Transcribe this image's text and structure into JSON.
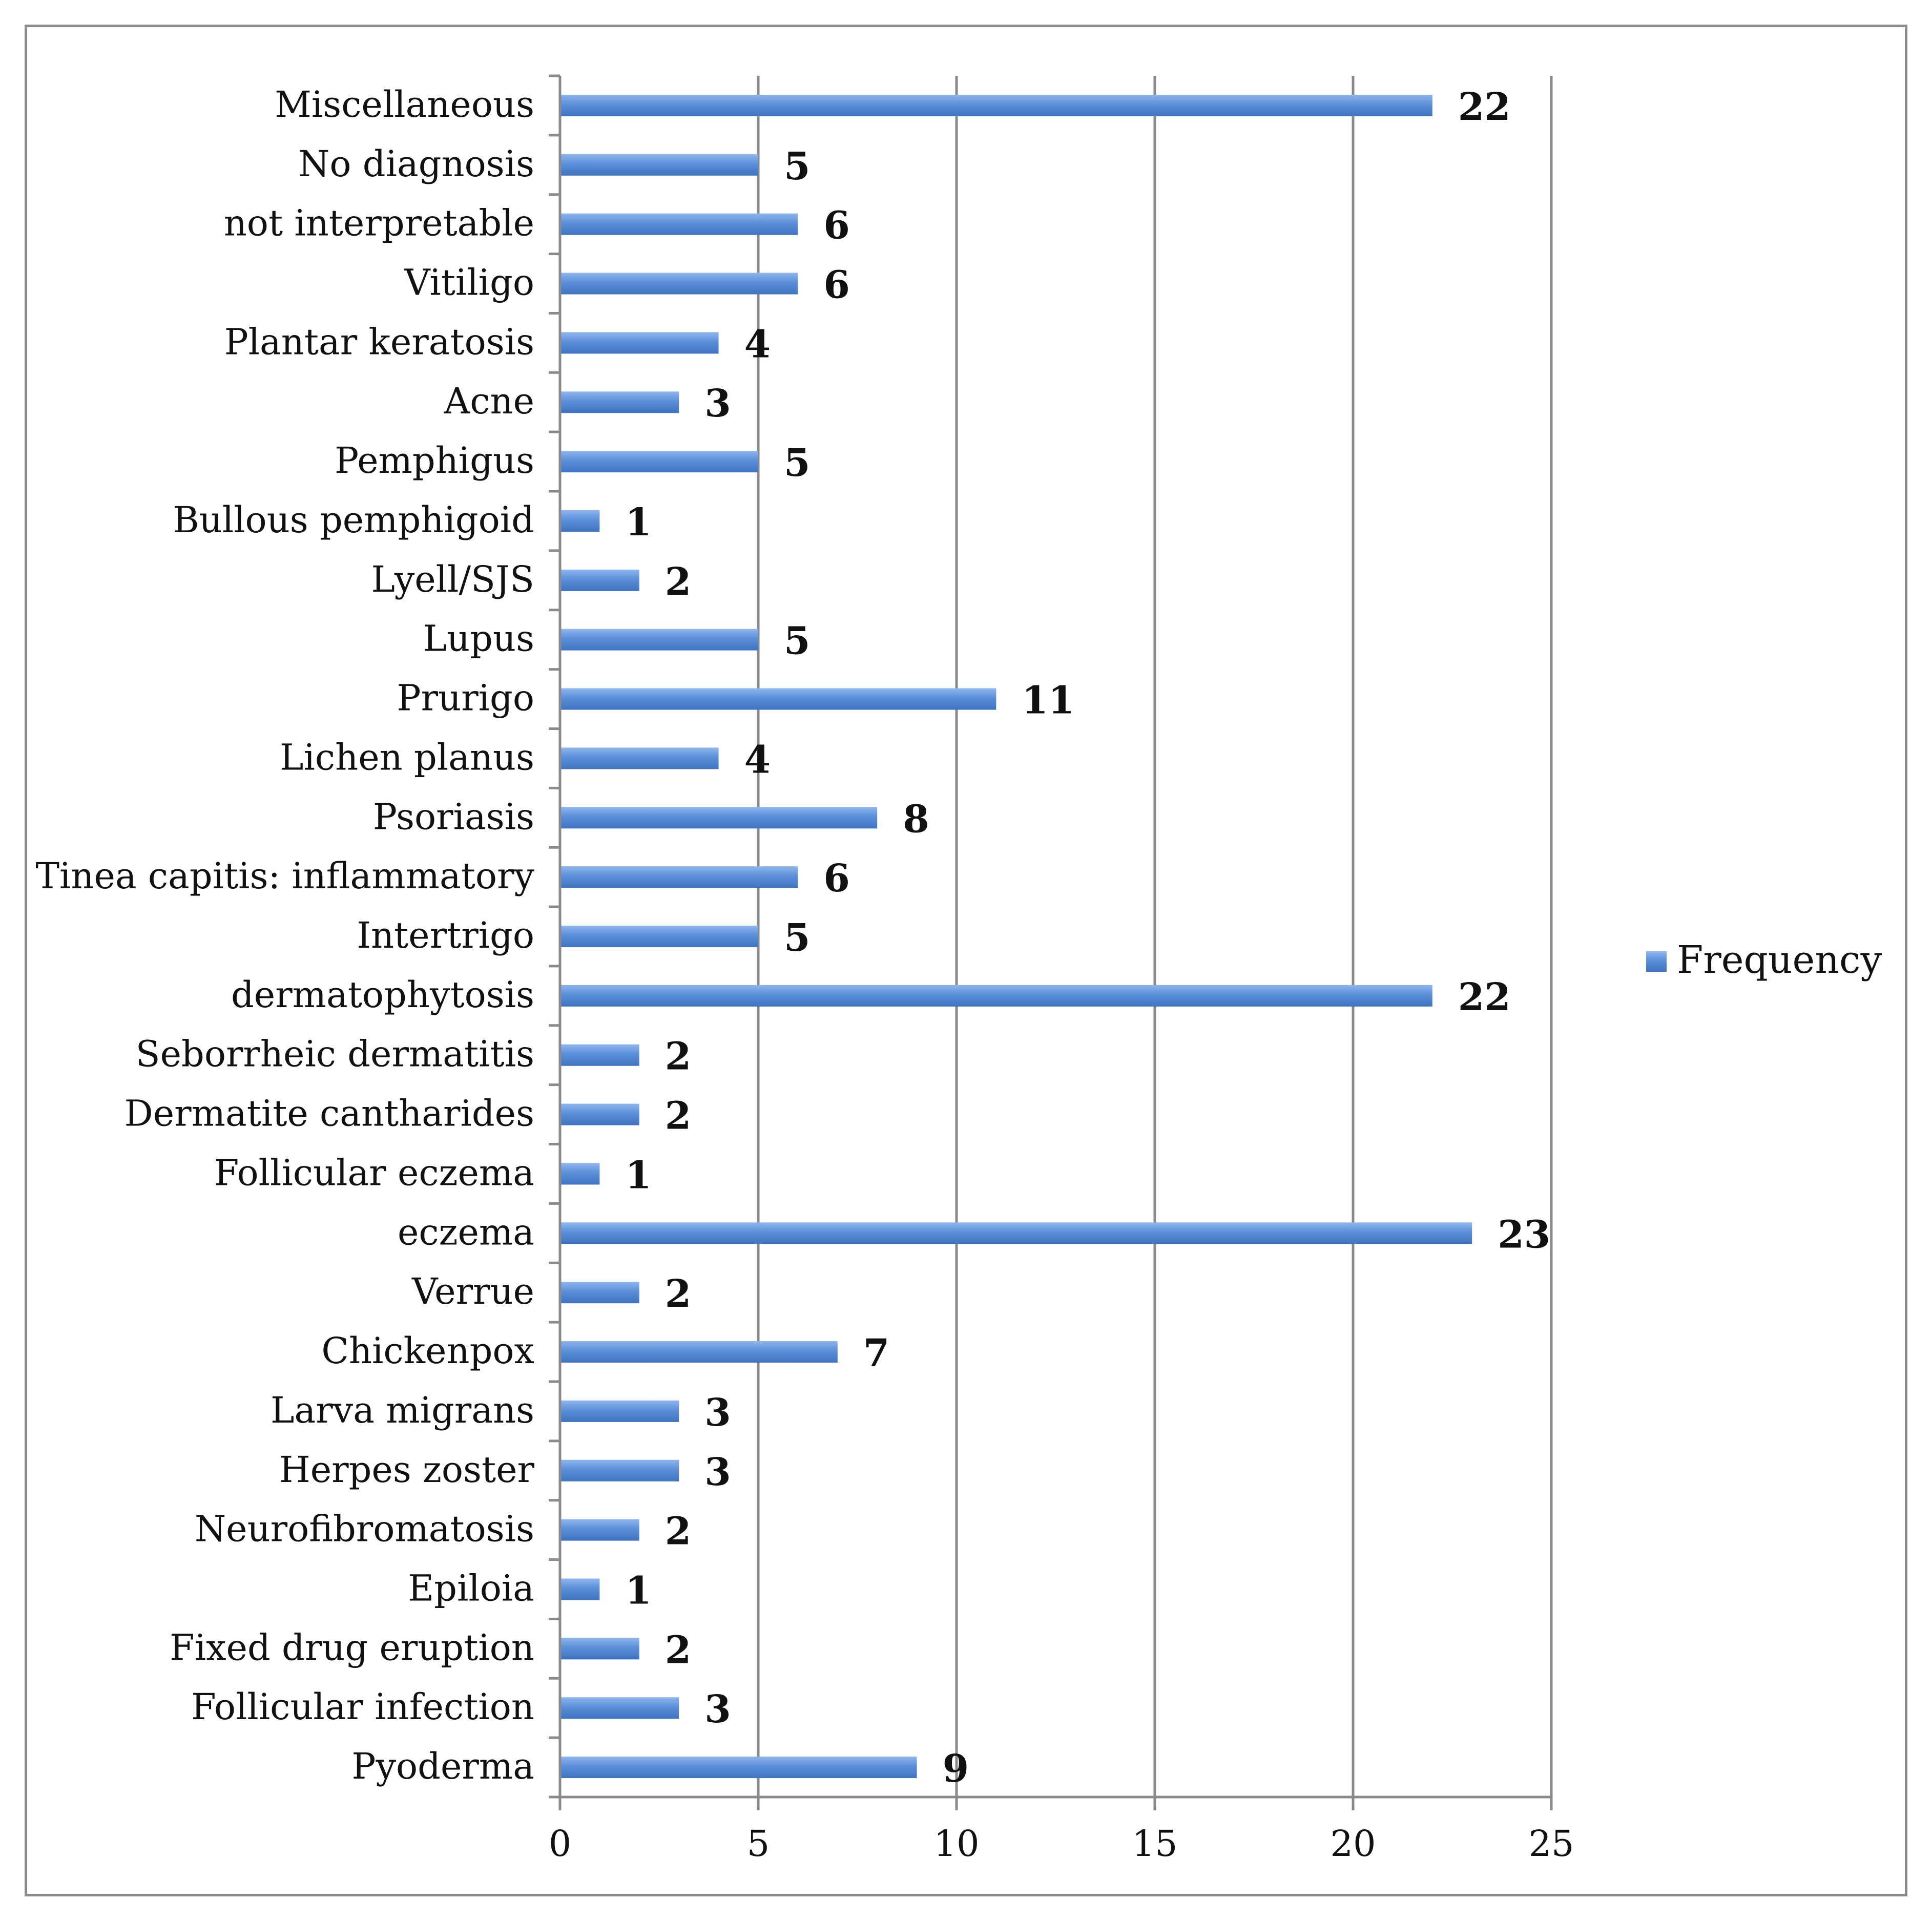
{
  "chart_data": {
    "type": "bar",
    "orientation": "horizontal",
    "title": "",
    "xlabel": "",
    "ylabel": "",
    "xlim": [
      0,
      25
    ],
    "x_ticks": [
      0,
      5,
      10,
      15,
      20,
      25
    ],
    "grid": true,
    "legend_position": "right",
    "bar_color": "#5b8fd8",
    "categories": [
      "Miscellaneous",
      "No diagnosis",
      "not interpretable",
      "Vitiligo",
      "Plantar keratosis",
      "Acne",
      "Pemphigus",
      "Bullous pemphigoid",
      "Lyell/SJS",
      "Lupus",
      "Prurigo",
      "Lichen planus",
      "Psoriasis",
      "Tinea capitis: inflammatory",
      "Intertrigo ",
      "dermatophytosis",
      "Seborrheic dermatitis",
      "Dermatite cantharides",
      "Follicular eczema",
      "eczema",
      "Verrue",
      "Chickenpox",
      "Larva migrans",
      "Herpes zoster",
      "Neurofibromatosis",
      "Epiloia",
      "Fixed  drug eruption",
      "Follicular infection",
      "Pyoderma"
    ],
    "series": [
      {
        "name": "Frequency",
        "values": [
          22,
          5,
          6,
          6,
          4,
          3,
          5,
          1,
          2,
          5,
          11,
          4,
          8,
          6,
          5,
          22,
          2,
          2,
          1,
          23,
          2,
          7,
          3,
          3,
          2,
          1,
          2,
          3,
          9
        ]
      }
    ]
  }
}
